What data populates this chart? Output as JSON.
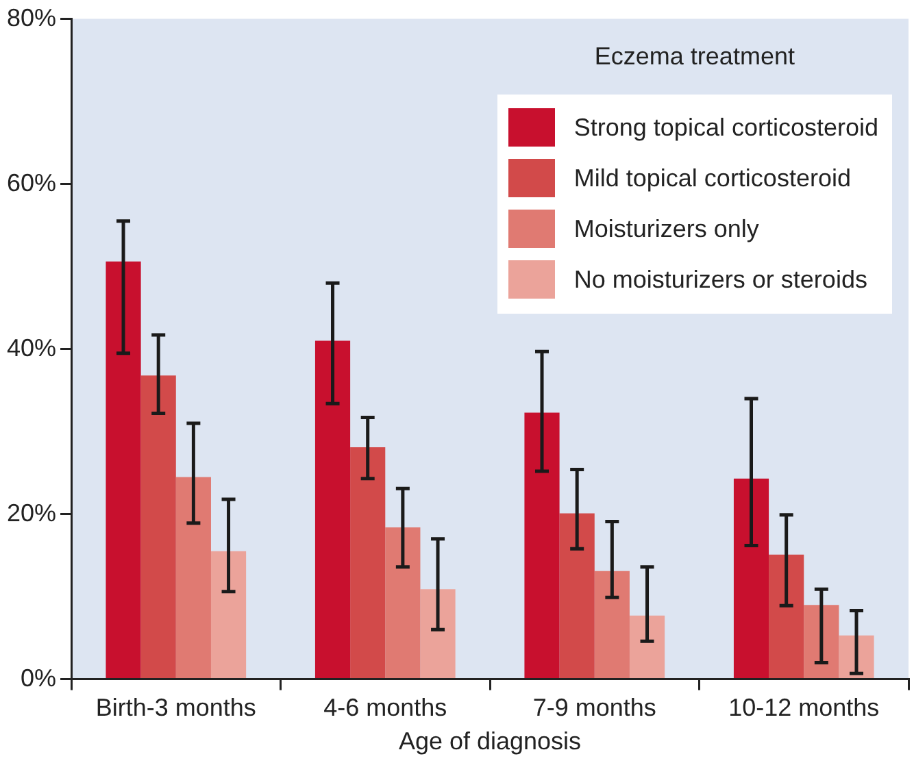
{
  "chart_data": {
    "type": "bar",
    "xlabel": "Age of diagnosis",
    "legend_title": "Eczema treatment",
    "legend": "top right",
    "grid": false,
    "categories": [
      "Birth-3 months",
      "4-6 months",
      "7-9 months",
      "10-12 months"
    ],
    "ylim": [
      0,
      80
    ],
    "yticks": [
      {
        "value": 0,
        "label": "0%"
      },
      {
        "value": 20,
        "label": "20%"
      },
      {
        "value": 40,
        "label": "40%"
      },
      {
        "value": 60,
        "label": "60%"
      },
      {
        "value": 80,
        "label": "80%"
      }
    ],
    "series": [
      {
        "name": "Strong topical corticosteroid",
        "color": "#c8102e",
        "values": [
          50.6,
          41,
          32.3,
          24.3
        ],
        "errors": [
          [
            39.5,
            55.5
          ],
          [
            33.4,
            48
          ],
          [
            25.2,
            39.7
          ],
          [
            16.2,
            34
          ]
        ]
      },
      {
        "name": "Mild topical corticosteroid",
        "color": "#d24a4a",
        "values": [
          36.8,
          28.1,
          20.1,
          15.1
        ],
        "errors": [
          [
            32.2,
            41.7
          ],
          [
            24.3,
            31.7
          ],
          [
            15.8,
            25.4
          ],
          [
            8.9,
            19.9
          ]
        ]
      },
      {
        "name": "Moisturizers only",
        "color": "#e07a72",
        "values": [
          24.5,
          18.4,
          13.1,
          9
        ],
        "errors": [
          [
            18.9,
            31
          ],
          [
            13.6,
            23.1
          ],
          [
            9.9,
            19.1
          ],
          [
            2,
            10.9
          ]
        ]
      },
      {
        "name": "No moisturizers or steroids",
        "color": "#eba39a",
        "values": [
          15.5,
          10.9,
          7.7,
          5.3
        ],
        "errors": [
          [
            10.6,
            21.8
          ],
          [
            6,
            17
          ],
          [
            4.6,
            13.6
          ],
          [
            0.7,
            8.3
          ]
        ]
      }
    ]
  }
}
